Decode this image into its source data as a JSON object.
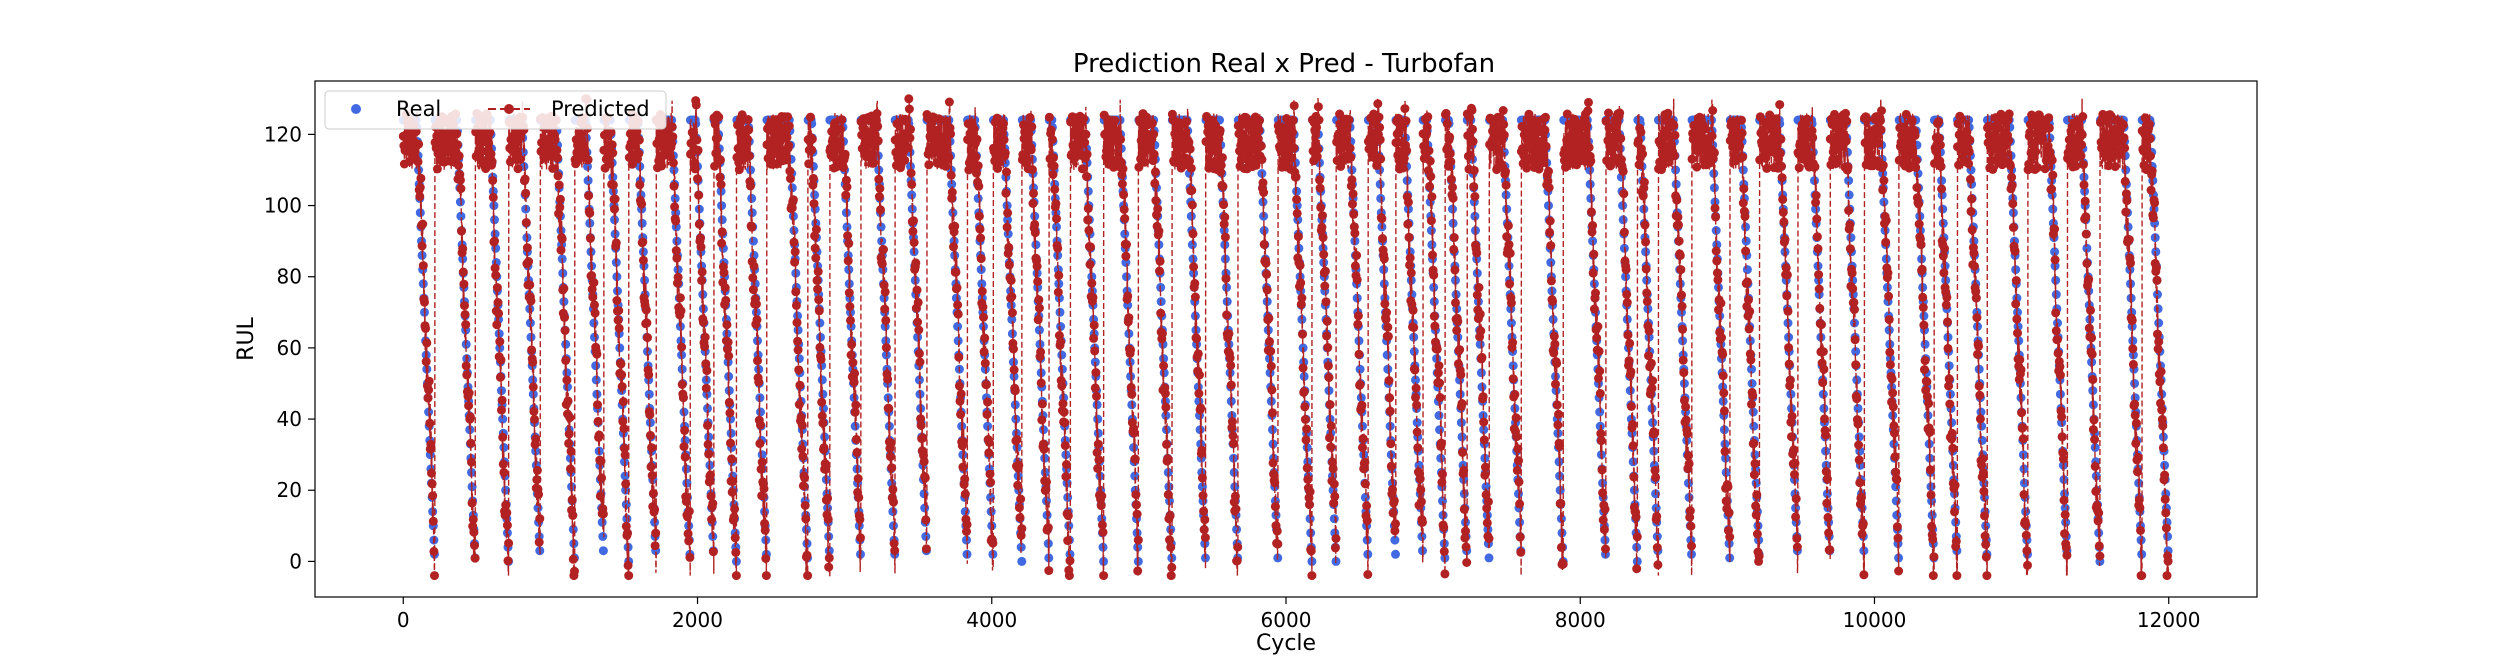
{
  "chart_data": {
    "type": "line",
    "title": "Prediction Real x Pred - Turbofan",
    "xlabel": "Cycle",
    "ylabel": "RUL",
    "xlim": [
      -600,
      12600
    ],
    "ylim": [
      -10,
      135
    ],
    "xticks": [
      0,
      2000,
      4000,
      6000,
      8000,
      10000,
      12000
    ],
    "yticks": [
      0,
      20,
      40,
      60,
      80,
      100,
      120
    ],
    "grid": false,
    "legend_position": "top-left",
    "total_cycles": 12000,
    "rul_cap": 124,
    "series": [
      {
        "name": "Real",
        "style": "markers",
        "color": "#4169e1"
      },
      {
        "name": "Predicted",
        "style": "dashed-line-markers",
        "color": "#b22222"
      }
    ]
  }
}
